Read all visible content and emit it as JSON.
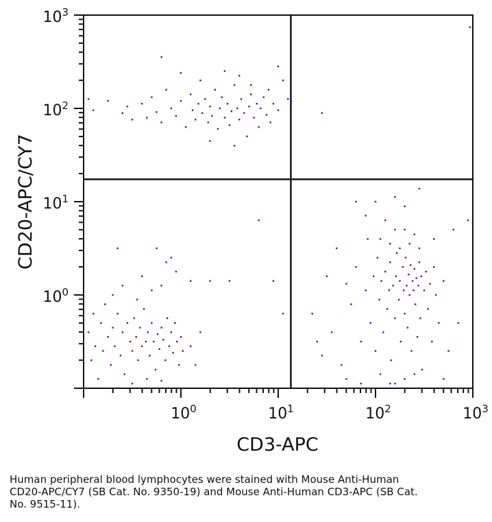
{
  "chart_data": {
    "type": "scatter",
    "title": "",
    "xlabel": "CD3-APC",
    "ylabel": "CD20-APC/CY7",
    "xscale": "log",
    "yscale": "log",
    "xlim_log10": [
      -1,
      3
    ],
    "ylim_log10": [
      -1,
      3
    ],
    "xticks": [
      {
        "base": "10",
        "exp": "0",
        "v": 0
      },
      {
        "base": "10",
        "exp": "1",
        "v": 1
      },
      {
        "base": "10",
        "exp": "2",
        "v": 2
      },
      {
        "base": "10",
        "exp": "3",
        "v": 3
      }
    ],
    "yticks": [
      {
        "base": "10",
        "exp": "0",
        "v": 0
      },
      {
        "base": "10",
        "exp": "1",
        "v": 1
      },
      {
        "base": "10",
        "exp": "2",
        "v": 2
      },
      {
        "base": "10",
        "exp": "3",
        "v": 3
      }
    ],
    "quadrant_gates_log10": {
      "x": 1.13,
      "y": 1.24
    },
    "point_color": "#5b1190",
    "points_log10": [
      [
        -0.95,
        2.1
      ],
      [
        -0.9,
        1.98
      ],
      [
        -0.75,
        2.08
      ],
      [
        -0.6,
        1.95
      ],
      [
        -0.55,
        2.02
      ],
      [
        -0.5,
        1.88
      ],
      [
        -0.4,
        2.05
      ],
      [
        -0.35,
        1.9
      ],
      [
        -0.3,
        2.12
      ],
      [
        -0.25,
        1.96
      ],
      [
        -0.2,
        1.85
      ],
      [
        -0.15,
        2.2
      ],
      [
        -0.1,
        2.0
      ],
      [
        -0.05,
        1.92
      ],
      [
        0.0,
        2.08
      ],
      [
        0.05,
        1.8
      ],
      [
        0.1,
        2.15
      ],
      [
        0.12,
        1.98
      ],
      [
        0.15,
        1.88
      ],
      [
        0.18,
        2.05
      ],
      [
        0.2,
        2.3
      ],
      [
        0.22,
        1.95
      ],
      [
        0.25,
        2.1
      ],
      [
        0.28,
        1.85
      ],
      [
        0.3,
        2.02
      ],
      [
        0.32,
        1.92
      ],
      [
        0.35,
        2.2
      ],
      [
        0.38,
        1.78
      ],
      [
        0.4,
        2.0
      ],
      [
        0.42,
        2.12
      ],
      [
        0.45,
        1.9
      ],
      [
        0.48,
        2.05
      ],
      [
        0.5,
        1.82
      ],
      [
        0.52,
        1.97
      ],
      [
        0.55,
        2.25
      ],
      [
        0.58,
        2.0
      ],
      [
        0.6,
        1.88
      ],
      [
        0.62,
        2.1
      ],
      [
        0.65,
        1.95
      ],
      [
        0.68,
        1.7
      ],
      [
        0.7,
        2.02
      ],
      [
        0.72,
        2.15
      ],
      [
        0.75,
        1.9
      ],
      [
        0.78,
        2.05
      ],
      [
        0.8,
        1.8
      ],
      [
        0.82,
        2.0
      ],
      [
        0.85,
        2.12
      ],
      [
        0.88,
        1.93
      ],
      [
        0.9,
        2.2
      ],
      [
        0.92,
        1.85
      ],
      [
        0.95,
        2.05
      ],
      [
        1.0,
        1.98
      ],
      [
        1.05,
        2.3
      ],
      [
        1.1,
        2.1
      ],
      [
        0.3,
        1.65
      ],
      [
        0.55,
        1.6
      ],
      [
        -0.2,
        2.55
      ],
      [
        0.0,
        2.38
      ],
      [
        0.6,
        2.35
      ],
      [
        1.0,
        2.45
      ],
      [
        0.72,
        2.25
      ],
      [
        0.45,
        2.4
      ],
      [
        2.97,
        2.87
      ],
      [
        1.45,
        1.95
      ],
      [
        -0.95,
        -0.4
      ],
      [
        -0.92,
        -0.7
      ],
      [
        -0.9,
        -0.2
      ],
      [
        -0.88,
        -0.55
      ],
      [
        -0.85,
        -0.9
      ],
      [
        -0.82,
        -0.3
      ],
      [
        -0.8,
        -0.6
      ],
      [
        -0.78,
        -0.1
      ],
      [
        -0.75,
        -0.45
      ],
      [
        -0.72,
        -0.75
      ],
      [
        -0.7,
        -0.35
      ],
      [
        -0.68,
        -0.55
      ],
      [
        -0.65,
        -0.2
      ],
      [
        -0.62,
        -0.65
      ],
      [
        -0.6,
        -0.4
      ],
      [
        -0.58,
        -0.85
      ],
      [
        -0.55,
        -0.3
      ],
      [
        -0.52,
        -0.5
      ],
      [
        -0.5,
        -0.6
      ],
      [
        -0.48,
        -0.25
      ],
      [
        -0.46,
        -0.45
      ],
      [
        -0.44,
        -0.7
      ],
      [
        -0.42,
        -0.35
      ],
      [
        -0.4,
        -0.55
      ],
      [
        -0.38,
        -0.15
      ],
      [
        -0.36,
        -0.5
      ],
      [
        -0.34,
        -0.4
      ],
      [
        -0.32,
        -0.65
      ],
      [
        -0.3,
        -0.3
      ],
      [
        -0.28,
        -0.5
      ],
      [
        -0.26,
        -0.8
      ],
      [
        -0.24,
        -0.42
      ],
      [
        -0.22,
        -0.58
      ],
      [
        -0.2,
        -0.35
      ],
      [
        -0.18,
        -0.48
      ],
      [
        -0.16,
        -0.7
      ],
      [
        -0.14,
        -0.25
      ],
      [
        -0.12,
        -0.55
      ],
      [
        -0.1,
        -0.4
      ],
      [
        -0.08,
        -0.62
      ],
      [
        -0.06,
        -0.3
      ],
      [
        -0.04,
        -0.5
      ],
      [
        -0.02,
        -0.75
      ],
      [
        0.0,
        -0.45
      ],
      [
        0.02,
        -0.6
      ],
      [
        -0.5,
        -0.95
      ],
      [
        -0.35,
        -0.9
      ],
      [
        -0.2,
        -0.92
      ],
      [
        -0.6,
        0.1
      ],
      [
        -0.4,
        0.2
      ],
      [
        -0.3,
        0.05
      ],
      [
        -0.15,
        0.35
      ],
      [
        -0.05,
        0.25
      ],
      [
        -0.7,
        0.0
      ],
      [
        -0.45,
        -0.05
      ],
      [
        -0.25,
        0.5
      ],
      [
        -0.65,
        0.5
      ],
      [
        -0.1,
        0.4
      ],
      [
        0.1,
        0.15
      ],
      [
        -0.2,
        0.1
      ],
      [
        0.2,
        -0.4
      ],
      [
        0.1,
        -0.55
      ],
      [
        0.3,
        0.15
      ],
      [
        0.5,
        0.15
      ],
      [
        0.95,
        0.15
      ],
      [
        1.05,
        -0.2
      ],
      [
        0.8,
        0.8
      ],
      [
        0.15,
        -0.75
      ],
      [
        1.35,
        -0.2
      ],
      [
        1.45,
        -0.65
      ],
      [
        1.55,
        -0.4
      ],
      [
        1.65,
        -0.75
      ],
      [
        1.7,
        0.12
      ],
      [
        1.75,
        -0.1
      ],
      [
        1.8,
        0.3
      ],
      [
        1.85,
        -0.5
      ],
      [
        1.9,
        0.05
      ],
      [
        1.92,
        0.6
      ],
      [
        1.95,
        -0.3
      ],
      [
        1.98,
        0.2
      ],
      [
        2.0,
        -0.6
      ],
      [
        2.02,
        0.4
      ],
      [
        2.04,
        -0.05
      ],
      [
        2.06,
        0.15
      ],
      [
        2.08,
        -0.4
      ],
      [
        2.1,
        0.25
      ],
      [
        2.12,
        -0.15
      ],
      [
        2.14,
        0.05
      ],
      [
        2.15,
        0.35
      ],
      [
        2.16,
        -0.7
      ],
      [
        2.18,
        0.1
      ],
      [
        2.2,
        -0.25
      ],
      [
        2.21,
        0.2
      ],
      [
        2.22,
        0.45
      ],
      [
        2.24,
        -0.05
      ],
      [
        2.25,
        0.15
      ],
      [
        2.26,
        -0.5
      ],
      [
        2.28,
        0.3
      ],
      [
        2.29,
        0.05
      ],
      [
        2.3,
        -0.2
      ],
      [
        2.31,
        0.4
      ],
      [
        2.32,
        0.1
      ],
      [
        2.33,
        -0.35
      ],
      [
        2.34,
        0.22
      ],
      [
        2.35,
        0.0
      ],
      [
        2.36,
        0.32
      ],
      [
        2.37,
        -0.6
      ],
      [
        2.38,
        0.15
      ],
      [
        2.39,
        0.05
      ],
      [
        2.4,
        0.28
      ],
      [
        2.41,
        -0.1
      ],
      [
        2.42,
        0.18
      ],
      [
        2.43,
        -0.45
      ],
      [
        2.44,
        0.1
      ],
      [
        2.45,
        0.35
      ],
      [
        2.46,
        -0.25
      ],
      [
        2.47,
        0.2
      ],
      [
        2.48,
        -0.8
      ],
      [
        2.5,
        0.05
      ],
      [
        2.52,
        0.25
      ],
      [
        2.54,
        -0.15
      ],
      [
        2.56,
        0.12
      ],
      [
        2.58,
        -0.5
      ],
      [
        2.6,
        0.3
      ],
      [
        2.62,
        0.0
      ],
      [
        2.65,
        -0.3
      ],
      [
        2.7,
        0.15
      ],
      [
        2.75,
        -0.6
      ],
      [
        2.2,
        -0.95
      ],
      [
        2.3,
        -0.9
      ],
      [
        2.4,
        -0.85
      ],
      [
        2.15,
        -0.95
      ],
      [
        2.05,
        -0.85
      ],
      [
        2.25,
        0.5
      ],
      [
        2.35,
        0.55
      ],
      [
        2.45,
        0.5
      ],
      [
        2.15,
        0.55
      ],
      [
        2.05,
        0.6
      ],
      [
        1.9,
        0.85
      ],
      [
        2.0,
        1.0
      ],
      [
        2.2,
        1.05
      ],
      [
        2.3,
        0.95
      ],
      [
        2.45,
        1.14
      ],
      [
        1.8,
        1.0
      ],
      [
        2.1,
        0.8
      ],
      [
        2.6,
        0.6
      ],
      [
        2.8,
        0.7
      ],
      [
        2.95,
        0.8
      ],
      [
        1.6,
        0.5
      ],
      [
        1.5,
        0.2
      ],
      [
        1.4,
        -0.5
      ],
      [
        1.7,
        -0.9
      ],
      [
        1.85,
        -0.95
      ],
      [
        2.7,
        -0.9
      ],
      [
        2.85,
        -0.3
      ],
      [
        2.2,
        0.7
      ],
      [
        2.3,
        0.7
      ],
      [
        2.4,
        0.65
      ]
    ]
  },
  "caption": "Human peripheral blood lymphocytes were stained with Mouse Anti-Human CD20-APC/CY7 (SB Cat. No. 9350-19) and Mouse Anti-Human CD3-APC (SB Cat. No. 9515-11)."
}
